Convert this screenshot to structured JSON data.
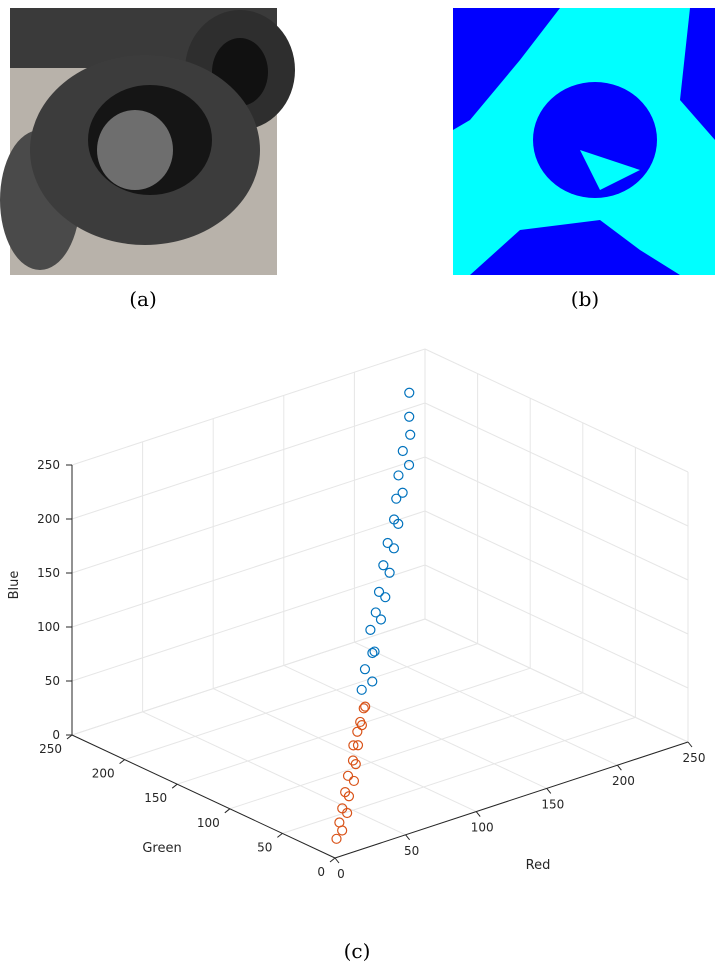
{
  "panel_labels": [
    "(a)",
    "(b)",
    "(c)"
  ],
  "chart_data": {
    "type": "scatter3d",
    "xlabel": "Red",
    "ylabel": "Green",
    "zlabel": "Blue",
    "xlim": [
      0,
      250
    ],
    "ylim": [
      0,
      250
    ],
    "zlim": [
      0,
      250
    ],
    "xticks": [
      0,
      50,
      100,
      150,
      200,
      250
    ],
    "yticks": [
      0,
      50,
      100,
      150,
      200,
      250
    ],
    "zticks": [
      0,
      50,
      100,
      150,
      200,
      250
    ],
    "grid": true,
    "series": [
      {
        "color": "#0072bd",
        "x": [
          80,
          86,
          92,
          98,
          104,
          110,
          116,
          122,
          128,
          134,
          140,
          146,
          152,
          158,
          164,
          170,
          176,
          182,
          188,
          194,
          200,
          206,
          212,
          218
        ],
        "y": [
          82,
          80,
          95,
          96,
          102,
          114,
          112,
          125,
          124,
          138,
          136,
          150,
          148,
          162,
          160,
          172,
          178,
          180,
          192,
          190,
          204,
          205,
          214,
          222
        ],
        "z": [
          84,
          90,
          92,
          104,
          100,
          112,
          120,
          118,
          130,
          126,
          142,
          140,
          154,
          150,
          166,
          162,
          176,
          178,
          186,
          194,
          198,
          210,
          220,
          236
        ]
      },
      {
        "color": "#d95319",
        "x": [
          10,
          14,
          18,
          22,
          26,
          30,
          34,
          38,
          42,
          46,
          50,
          54,
          58,
          62,
          66,
          70,
          74,
          78
        ],
        "y": [
          12,
          12,
          20,
          18,
          28,
          27,
          36,
          33,
          44,
          42,
          50,
          55,
          56,
          62,
          63,
          70,
          72,
          76
        ],
        "z": [
          8,
          14,
          16,
          24,
          22,
          32,
          30,
          40,
          38,
          48,
          46,
          56,
          54,
          62,
          66,
          64,
          74,
          72
        ]
      }
    ]
  }
}
